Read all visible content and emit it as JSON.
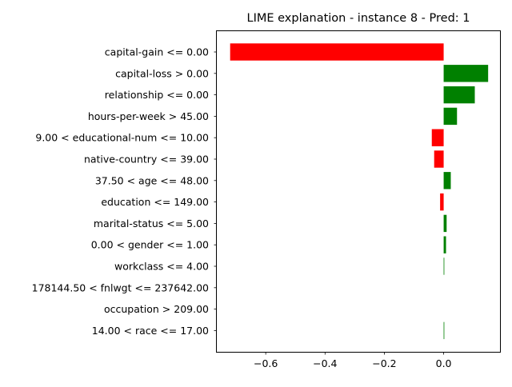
{
  "chart_data": {
    "type": "bar",
    "orientation": "horizontal",
    "title": "LIME explanation - instance 8 - Pred: 1",
    "xlabel": "",
    "ylabel": "",
    "xlim": [
      -0.765,
      0.19
    ],
    "xticks": [
      -0.6,
      -0.4,
      -0.2,
      0.0
    ],
    "xtick_labels": [
      "−0.6",
      "−0.4",
      "−0.2",
      "0.0"
    ],
    "grid": false,
    "legend": "none",
    "colors": {
      "positive": "#008000",
      "negative": "#ff0000"
    },
    "categories": [
      "capital-gain <= 0.00",
      "capital-loss > 0.00",
      "relationship <= 0.00",
      "hours-per-week > 45.00",
      "9.00 < educational-num <= 10.00",
      "native-country <= 39.00",
      "37.50 < age <= 48.00",
      "education <= 149.00",
      "marital-status <= 5.00",
      "0.00 < gender <= 1.00",
      "workclass <= 4.00",
      "178144.50 < fnlwgt <= 237642.00",
      "occupation > 209.00",
      "14.00 < race <= 17.00"
    ],
    "values": [
      -0.72,
      0.15,
      0.105,
      0.045,
      -0.04,
      -0.032,
      0.024,
      -0.012,
      0.01,
      0.008,
      0.002,
      0.0,
      0.0,
      0.002
    ]
  }
}
